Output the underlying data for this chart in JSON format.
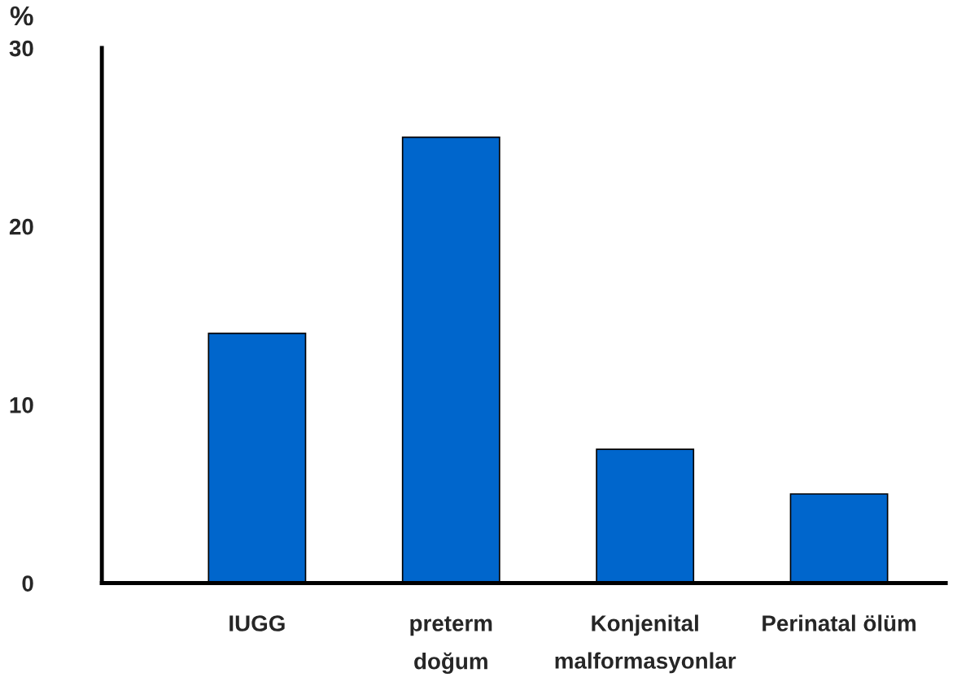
{
  "chart_data": {
    "type": "bar",
    "ylabel": "%",
    "categories": [
      "IUGG",
      "preterm\ndoğum",
      "Konjenital\nmalformasyonlar",
      "Perinatal ölüm"
    ],
    "values": [
      14,
      25,
      7.5,
      5
    ],
    "color": "#0066cc",
    "ylim": [
      0,
      30
    ],
    "yticks": [
      0,
      10,
      20,
      30
    ],
    "grid": false,
    "legend": false
  }
}
